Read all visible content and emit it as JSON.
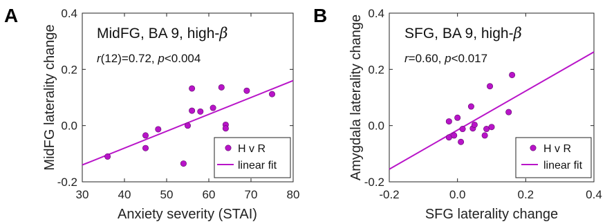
{
  "colors": {
    "accent": "#b814c8",
    "axis": "#222222"
  },
  "panels": [
    {
      "letter": "A",
      "title_main": "MidFG, BA 9, high-",
      "title_symbol": "β",
      "stat": {
        "r_sym": "r",
        "r_text": "(12)=0.72, ",
        "p_sym": "p",
        "p_text": "<0.004"
      },
      "legend": {
        "points": "H v R",
        "line": "linear fit"
      }
    },
    {
      "letter": "B",
      "title_main": "SFG, BA 9, high-",
      "title_symbol": "β",
      "stat": {
        "r_sym": "r",
        "r_text": "=0.60, ",
        "p_sym": "p",
        "p_text": "<0.017"
      },
      "legend": {
        "points": "H v R",
        "line": "linear fit"
      }
    }
  ],
  "chart_data": [
    {
      "type": "scatter",
      "xlabel": "Anxiety severity (STAI)",
      "ylabel": "MidFG laterality change",
      "xlim": [
        30,
        80
      ],
      "ylim": [
        -0.2,
        0.4
      ],
      "xticks": [
        "30",
        "40",
        "50",
        "60",
        "70",
        "80"
      ],
      "xtick_values": [
        30,
        40,
        50,
        60,
        70,
        80
      ],
      "yticks": [
        "-0.2",
        "0.0",
        "0.2",
        "0.4"
      ],
      "ytick_values": [
        -0.2,
        0.0,
        0.2,
        0.4
      ],
      "grid": false,
      "legend_position": "bottom-right",
      "series": [
        {
          "name": "H v R",
          "points": [
            [
              36,
              -0.11
            ],
            [
              45,
              -0.035
            ],
            [
              45,
              -0.08
            ],
            [
              48,
              -0.013
            ],
            [
              54,
              -0.135
            ],
            [
              55,
              0.0
            ],
            [
              56,
              0.132
            ],
            [
              56,
              0.053
            ],
            [
              58,
              0.05
            ],
            [
              61,
              0.063
            ],
            [
              63,
              0.136
            ],
            [
              64,
              0.003
            ],
            [
              64,
              -0.01
            ],
            [
              69,
              0.124
            ],
            [
              75,
              0.112
            ]
          ]
        }
      ],
      "fit": {
        "name": "linear fit",
        "x": [
          30,
          80
        ],
        "y": [
          -0.14,
          0.16
        ]
      }
    },
    {
      "type": "scatter",
      "xlabel": "SFG laterality change",
      "ylabel": "Amygdala laterality change",
      "xlim": [
        -0.2,
        0.4
      ],
      "ylim": [
        -0.2,
        0.4
      ],
      "xticks": [
        "-0.2",
        "0.0",
        "0.2",
        "0.4"
      ],
      "xtick_values": [
        -0.2,
        0.0,
        0.2,
        0.4
      ],
      "yticks": [
        "-0.2",
        "0.0",
        "0.2",
        "0.4"
      ],
      "ytick_values": [
        -0.2,
        0.0,
        0.2,
        0.4
      ],
      "grid": false,
      "legend_position": "bottom-right",
      "series": [
        {
          "name": "H v R",
          "points": [
            [
              -0.025,
              0.015
            ],
            [
              -0.025,
              -0.042
            ],
            [
              -0.01,
              -0.035
            ],
            [
              0.0,
              0.028
            ],
            [
              0.01,
              -0.058
            ],
            [
              0.015,
              -0.012
            ],
            [
              0.04,
              0.068
            ],
            [
              0.045,
              -0.01
            ],
            [
              0.05,
              0.003
            ],
            [
              0.08,
              -0.035
            ],
            [
              0.085,
              -0.012
            ],
            [
              0.095,
              0.14
            ],
            [
              0.1,
              -0.005
            ],
            [
              0.15,
              0.048
            ],
            [
              0.16,
              0.18
            ]
          ]
        }
      ],
      "fit": {
        "name": "linear fit",
        "x": [
          -0.2,
          0.4
        ],
        "y": [
          -0.155,
          0.262
        ]
      }
    }
  ]
}
